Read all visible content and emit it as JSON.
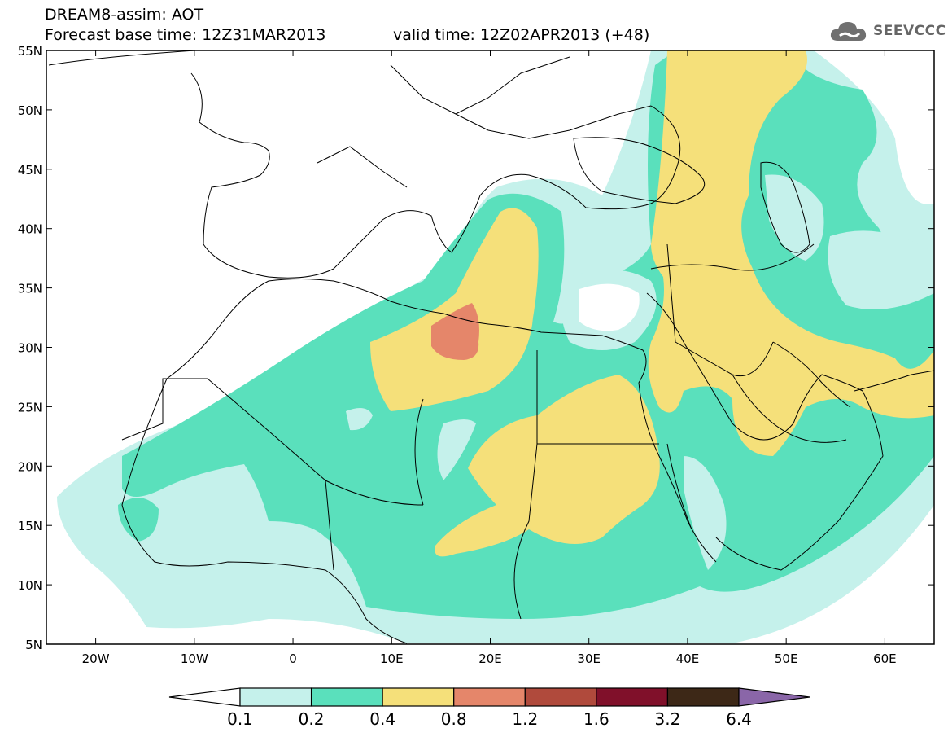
{
  "header": {
    "title_line1": "DREAM8-assim: AOT",
    "title_line2": "Forecast base time: 12Z31MAR2013",
    "valid_time": "valid time: 12Z02APR2013 (+48)",
    "logo_text": "SEEVCCC",
    "logo_icon": "cloud-icon"
  },
  "map": {
    "lat_labels": [
      "55N",
      "50N",
      "45N",
      "40N",
      "35N",
      "30N",
      "25N",
      "20N",
      "15N",
      "10N",
      "5N"
    ],
    "lat_values": [
      55,
      50,
      45,
      40,
      35,
      30,
      25,
      20,
      15,
      10,
      5
    ],
    "lon_labels": [
      "20W",
      "10W",
      "0",
      "10E",
      "20E",
      "30E",
      "40E",
      "50E",
      "60E"
    ],
    "lon_values": [
      -20,
      -10,
      0,
      10,
      20,
      30,
      40,
      50,
      60
    ],
    "lon_range": [
      -25,
      65
    ],
    "lat_range": [
      5,
      55
    ]
  },
  "legend": {
    "labels": [
      "0.1",
      "0.2",
      "0.4",
      "0.8",
      "1.2",
      "1.6",
      "3.2",
      "6.4"
    ],
    "colors": [
      "#ffffff",
      "#c5f1eb",
      "#5ae0bc",
      "#f5e07a",
      "#e5866a",
      "#b04a3c",
      "#80102a",
      "#3d2817",
      "#8a66a8"
    ]
  },
  "colors": {
    "c1": "#c5f1eb",
    "c2": "#5ae0bc",
    "c3": "#f5e07a",
    "c4": "#e5866a"
  }
}
